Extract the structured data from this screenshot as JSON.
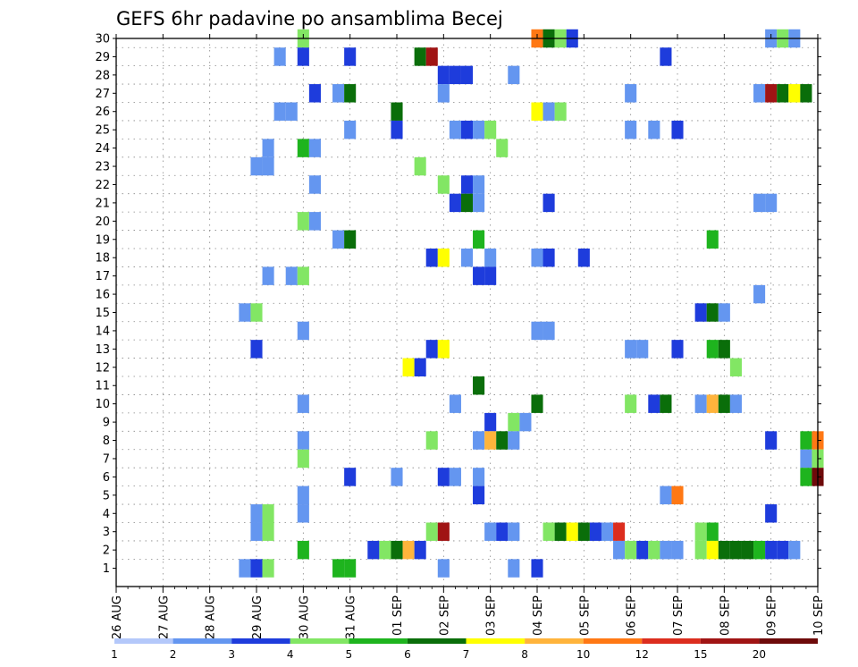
{
  "chart_data": {
    "type": "heatmap",
    "title": "GEFS 6hr padavine po ansamblima Becej",
    "xlabel": "",
    "ylabel": "",
    "x_tick_labels": [
      "26 AUG",
      "27 AUG",
      "28 AUG",
      "29 AUG",
      "30 AUG",
      "31 AUG",
      "01 SEP",
      "02 SEP",
      "03 SEP",
      "04 SEP",
      "05 SEP",
      "06 SEP",
      "07 SEP",
      "08 SEP",
      "09 SEP",
      "10 SEP"
    ],
    "x_range": [
      "26 AUG 00Z",
      "10 SEP 00Z"
    ],
    "x_step_hours": 6,
    "y_tick_labels": [
      "1",
      "2",
      "3",
      "4",
      "5",
      "6",
      "7",
      "8",
      "9",
      "10",
      "11",
      "12",
      "13",
      "14",
      "15",
      "16",
      "17",
      "18",
      "19",
      "20",
      "21",
      "22",
      "23",
      "24",
      "25",
      "26",
      "27",
      "28",
      "29",
      "30"
    ],
    "y_range": [
      0,
      30
    ],
    "grid": true,
    "colorbar": {
      "labels": [
        "1",
        "2",
        "3",
        "4",
        "5",
        "6",
        "7",
        "8",
        "10",
        "12",
        "15",
        "20"
      ],
      "colors": [
        "#b4c8fa",
        "#6496f0",
        "#1e3cdc",
        "#82e664",
        "#1eb41e",
        "#0a6e0a",
        "#ffff00",
        "#ffb43c",
        "#ff7814",
        "#dc2d1e",
        "#a01414",
        "#6e0a0a"
      ]
    },
    "levels_note": "",
    "cells": [
      [
        4,
        30,
        3
      ],
      [
        4,
        29,
        2
      ],
      [
        3.5,
        29,
        1
      ],
      [
        5,
        29,
        2
      ],
      [
        6.5,
        29,
        5
      ],
      [
        6.75,
        29,
        10
      ],
      [
        9,
        30,
        8
      ],
      [
        9.25,
        30,
        5
      ],
      [
        9.5,
        30,
        3
      ],
      [
        9.75,
        30,
        2
      ],
      [
        14,
        30,
        1
      ],
      [
        14.25,
        30,
        3
      ],
      [
        14.5,
        30,
        1
      ],
      [
        11.75,
        29,
        2
      ],
      [
        7,
        28,
        2
      ],
      [
        7.25,
        28,
        2
      ],
      [
        7.5,
        28,
        2
      ],
      [
        8.5,
        28,
        1
      ],
      [
        4.25,
        27,
        2
      ],
      [
        4.75,
        27,
        1
      ],
      [
        5,
        27,
        5
      ],
      [
        7,
        27,
        1
      ],
      [
        11,
        27,
        1
      ],
      [
        13.75,
        27,
        1
      ],
      [
        14,
        27,
        10
      ],
      [
        14.25,
        27,
        5
      ],
      [
        14.5,
        27,
        6
      ],
      [
        14.75,
        27,
        5
      ],
      [
        3.5,
        26,
        1
      ],
      [
        3.75,
        26,
        1
      ],
      [
        6,
        26,
        5
      ],
      [
        9,
        26,
        6
      ],
      [
        9.25,
        26,
        1
      ],
      [
        9.5,
        26,
        3
      ],
      [
        5,
        25,
        1
      ],
      [
        6,
        25,
        2
      ],
      [
        7.25,
        25,
        1
      ],
      [
        7.5,
        25,
        2
      ],
      [
        7.75,
        25,
        1
      ],
      [
        8,
        25,
        3
      ],
      [
        11,
        25,
        1
      ],
      [
        11.5,
        25,
        1
      ],
      [
        12,
        25,
        2
      ],
      [
        3.25,
        24,
        1
      ],
      [
        4,
        24,
        4
      ],
      [
        4.25,
        24,
        1
      ],
      [
        8.25,
        24,
        3
      ],
      [
        3,
        23,
        1
      ],
      [
        3.25,
        23,
        1
      ],
      [
        6.5,
        23,
        3
      ],
      [
        4.25,
        22,
        1
      ],
      [
        7,
        22,
        3
      ],
      [
        7.5,
        22,
        2
      ],
      [
        7.75,
        22,
        1
      ],
      [
        7.25,
        21,
        2
      ],
      [
        7.5,
        21,
        5
      ],
      [
        7.75,
        21,
        1
      ],
      [
        9.25,
        21,
        2
      ],
      [
        13.75,
        21,
        1
      ],
      [
        14,
        21,
        1
      ],
      [
        4,
        20,
        3
      ],
      [
        4.25,
        20,
        1
      ],
      [
        4.75,
        19,
        1
      ],
      [
        5,
        19,
        5
      ],
      [
        7.75,
        19,
        4
      ],
      [
        12.75,
        19,
        4
      ],
      [
        6.75,
        18,
        2
      ],
      [
        7,
        18,
        6
      ],
      [
        7.5,
        18,
        1
      ],
      [
        8,
        18,
        1
      ],
      [
        9,
        18,
        1
      ],
      [
        9.25,
        18,
        2
      ],
      [
        10,
        18,
        2
      ],
      [
        3.25,
        17,
        1
      ],
      [
        3.75,
        17,
        1
      ],
      [
        4,
        17,
        3
      ],
      [
        7.75,
        17,
        2
      ],
      [
        8,
        17,
        2
      ],
      [
        13.75,
        16,
        1
      ],
      [
        2.75,
        15,
        1
      ],
      [
        3,
        15,
        3
      ],
      [
        12.5,
        15,
        2
      ],
      [
        12.75,
        15,
        5
      ],
      [
        13,
        15,
        1
      ],
      [
        4,
        14,
        1
      ],
      [
        9,
        14,
        1
      ],
      [
        9.25,
        14,
        1
      ],
      [
        3,
        13,
        2
      ],
      [
        6.75,
        13,
        2
      ],
      [
        7,
        13,
        6
      ],
      [
        11,
        13,
        1
      ],
      [
        11.25,
        13,
        1
      ],
      [
        12,
        13,
        2
      ],
      [
        12.75,
        13,
        4
      ],
      [
        13,
        13,
        5
      ],
      [
        6.25,
        12,
        6
      ],
      [
        6.5,
        12,
        2
      ],
      [
        13.25,
        12,
        3
      ],
      [
        7.75,
        11,
        5
      ],
      [
        4,
        10,
        1
      ],
      [
        7.25,
        10,
        1
      ],
      [
        9,
        10,
        5
      ],
      [
        11,
        10,
        3
      ],
      [
        11.5,
        10,
        2
      ],
      [
        11.75,
        10,
        5
      ],
      [
        12.5,
        10,
        1
      ],
      [
        12.75,
        10,
        7
      ],
      [
        13,
        10,
        5
      ],
      [
        13.25,
        10,
        1
      ],
      [
        8,
        9,
        2
      ],
      [
        8.5,
        9,
        3
      ],
      [
        8.75,
        9,
        1
      ],
      [
        4,
        8,
        1
      ],
      [
        6.75,
        8,
        3
      ],
      [
        7.75,
        8,
        1
      ],
      [
        8,
        8,
        7
      ],
      [
        8.25,
        8,
        5
      ],
      [
        8.5,
        8,
        1
      ],
      [
        14,
        8,
        2
      ],
      [
        14.75,
        8,
        4
      ],
      [
        15,
        8,
        8
      ],
      [
        4,
        7,
        3
      ],
      [
        14.75,
        7,
        1
      ],
      [
        15,
        7,
        3
      ],
      [
        5,
        6,
        2
      ],
      [
        6,
        6,
        1
      ],
      [
        7,
        6,
        2
      ],
      [
        7.25,
        6,
        1
      ],
      [
        7.75,
        6,
        1
      ],
      [
        14.75,
        6,
        4
      ],
      [
        15,
        6,
        11
      ],
      [
        4,
        5,
        1
      ],
      [
        7.75,
        5,
        2
      ],
      [
        11.75,
        5,
        1
      ],
      [
        12,
        5,
        8
      ],
      [
        3,
        4,
        1
      ],
      [
        3.25,
        4,
        3
      ],
      [
        4,
        4,
        1
      ],
      [
        14,
        4,
        2
      ],
      [
        3,
        3,
        1
      ],
      [
        3.25,
        3,
        3
      ],
      [
        6.75,
        3,
        3
      ],
      [
        7,
        3,
        10
      ],
      [
        8,
        3,
        1
      ],
      [
        8.25,
        3,
        2
      ],
      [
        8.5,
        3,
        1
      ],
      [
        9.25,
        3,
        3
      ],
      [
        9.5,
        3,
        5
      ],
      [
        9.75,
        3,
        6
      ],
      [
        10,
        3,
        5
      ],
      [
        10.25,
        3,
        2
      ],
      [
        10.5,
        3,
        1
      ],
      [
        10.75,
        3,
        9
      ],
      [
        12.5,
        3,
        3
      ],
      [
        12.75,
        3,
        4
      ],
      [
        4,
        2,
        4
      ],
      [
        5.5,
        2,
        2
      ],
      [
        5.75,
        2,
        3
      ],
      [
        6,
        2,
        5
      ],
      [
        6.25,
        2,
        7
      ],
      [
        6.5,
        2,
        2
      ],
      [
        10.75,
        2,
        1
      ],
      [
        11,
        2,
        3
      ],
      [
        11.25,
        2,
        2
      ],
      [
        11.5,
        2,
        3
      ],
      [
        11.75,
        2,
        1
      ],
      [
        12,
        2,
        1
      ],
      [
        12.5,
        2,
        3
      ],
      [
        12.75,
        2,
        6
      ],
      [
        13,
        2,
        5
      ],
      [
        13.25,
        2,
        5
      ],
      [
        13.5,
        2,
        5
      ],
      [
        13.75,
        2,
        4
      ],
      [
        14,
        2,
        2
      ],
      [
        14.25,
        2,
        2
      ],
      [
        14.5,
        2,
        1
      ],
      [
        2.75,
        1,
        1
      ],
      [
        3,
        1,
        2
      ],
      [
        3.25,
        1,
        3
      ],
      [
        4.75,
        1,
        4
      ],
      [
        5,
        1,
        4
      ],
      [
        7,
        1,
        1
      ],
      [
        8.5,
        1,
        1
      ],
      [
        9,
        1,
        2
      ]
    ]
  }
}
